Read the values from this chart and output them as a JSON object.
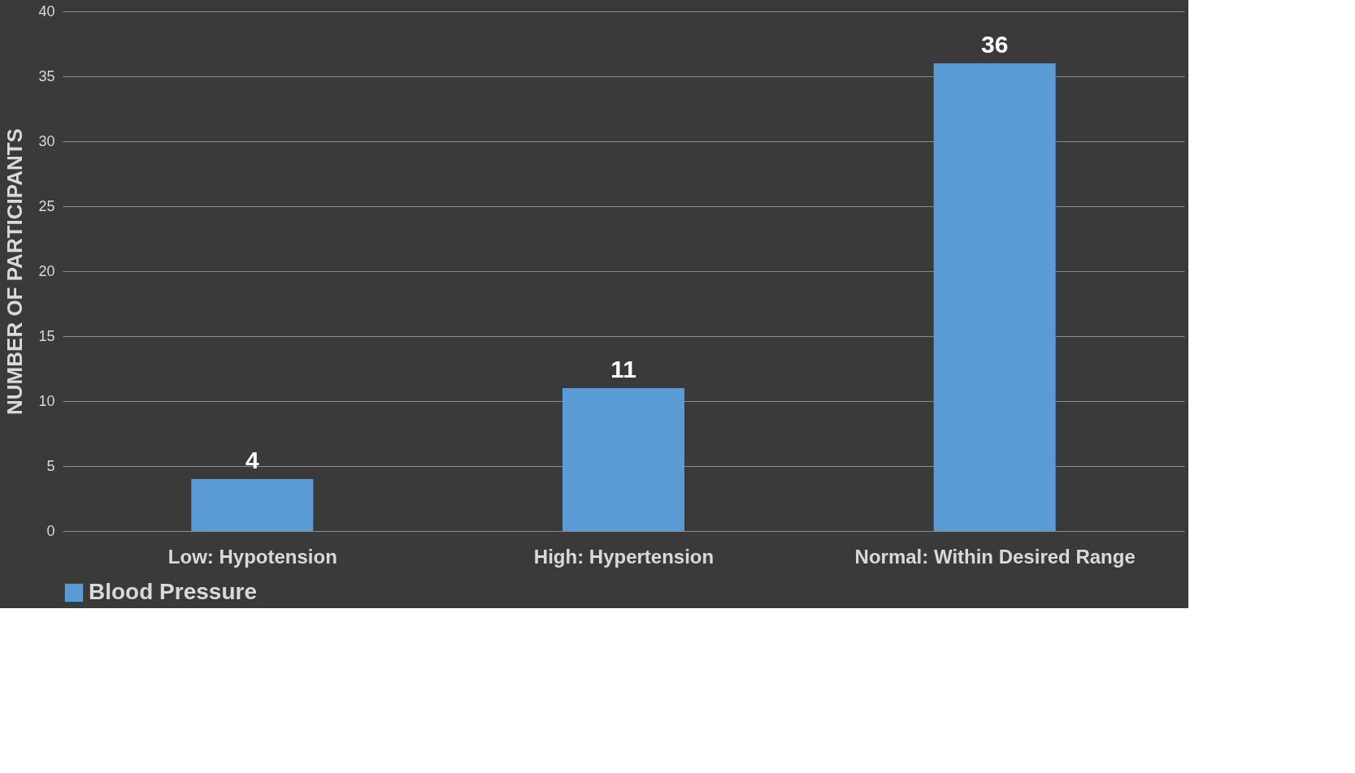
{
  "chart_data": {
    "type": "bar",
    "ylabel": "NUMBER OF PARTICIPANTS",
    "categories": [
      "Low: Hypotension",
      "High: Hypertension",
      "Normal: Within Desired Range"
    ],
    "series": [
      {
        "name": "Blood Pressure",
        "color": "#5b9bd5",
        "values": [
          4,
          11,
          36
        ]
      }
    ],
    "ylim": [
      0,
      40
    ],
    "yticks": [
      0,
      5,
      10,
      15,
      20,
      25,
      30,
      35,
      40
    ],
    "grid": "y",
    "legend": "bottom",
    "data_labels": true
  }
}
